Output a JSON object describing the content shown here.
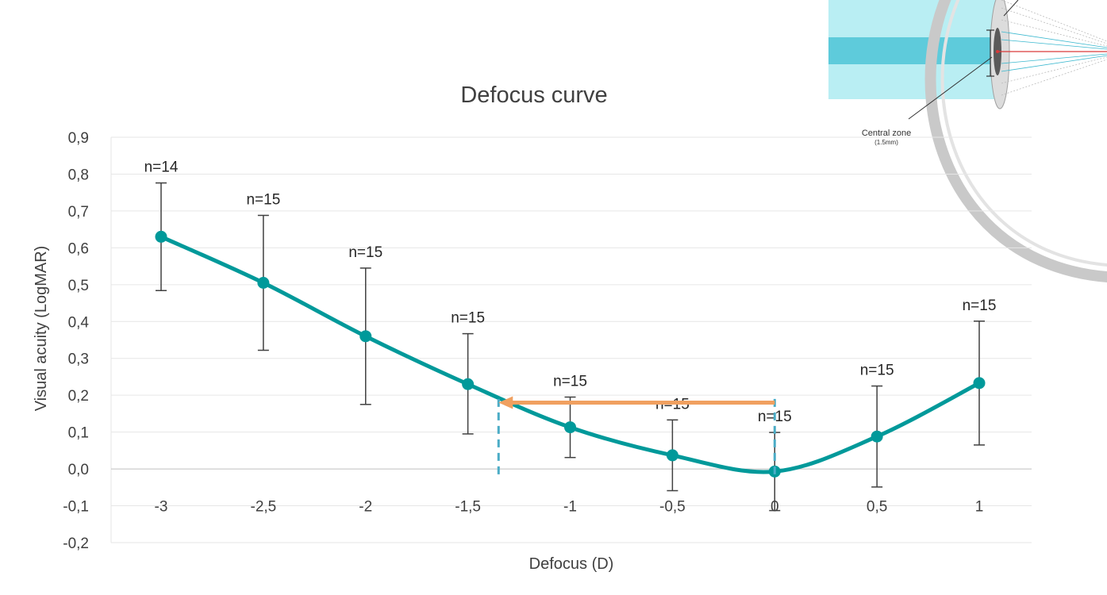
{
  "chart_data": {
    "type": "line",
    "title": "Defocus curve",
    "xlabel": "Defocus (D)",
    "ylabel": "Visual acuity (LogMAR)",
    "x": [
      -3,
      -2.5,
      -2,
      -1.5,
      -1,
      -0.5,
      0,
      0.5,
      1
    ],
    "x_tick_labels": [
      "-3",
      "-2,5",
      "-2",
      "-1,5",
      "-1",
      "-0,5",
      "0",
      "0,5",
      "1"
    ],
    "ylim": [
      -0.2,
      0.9
    ],
    "y_ticks": [
      -0.2,
      -0.1,
      0.0,
      0.1,
      0.2,
      0.3,
      0.4,
      0.5,
      0.6,
      0.7,
      0.8,
      0.9
    ],
    "y_tick_labels": [
      "-0,2",
      "-0,1",
      "0,0",
      "0,1",
      "0,2",
      "0,3",
      "0,4",
      "0,5",
      "0,6",
      "0,7",
      "0,8",
      "0,9"
    ],
    "grid": "horizontal",
    "series": [
      {
        "values": [
          0.63,
          0.505,
          0.36,
          0.23,
          0.113,
          0.037,
          -0.007,
          0.088,
          0.233
        ],
        "error_upper": [
          0.776,
          0.688,
          0.545,
          0.367,
          0.195,
          0.133,
          0.099,
          0.225,
          0.401
        ],
        "error_lower": [
          0.484,
          0.322,
          0.175,
          0.095,
          0.031,
          -0.059,
          -0.113,
          -0.049,
          0.065
        ],
        "n_labels": [
          "n=14",
          "n=15",
          "n=15",
          "n=15",
          "n=15",
          "n=15",
          "n=15",
          "n=15",
          "n=15"
        ],
        "color": "#00999a"
      }
    ],
    "annotations": {
      "range_arrow": {
        "from_x": 0,
        "to_x": -1.35,
        "y": 0.18,
        "color": "#f0a060"
      },
      "dashed_markers": [
        {
          "x": -1.35,
          "y_top": 0.19,
          "y_bottom": -0.02
        },
        {
          "x": 0,
          "y_top": 0.19,
          "y_bottom": -0.02
        }
      ],
      "marker_color": "#4bacc6"
    },
    "inset": {
      "label": "Central zone",
      "sublabel": "(1.5mm)"
    }
  }
}
